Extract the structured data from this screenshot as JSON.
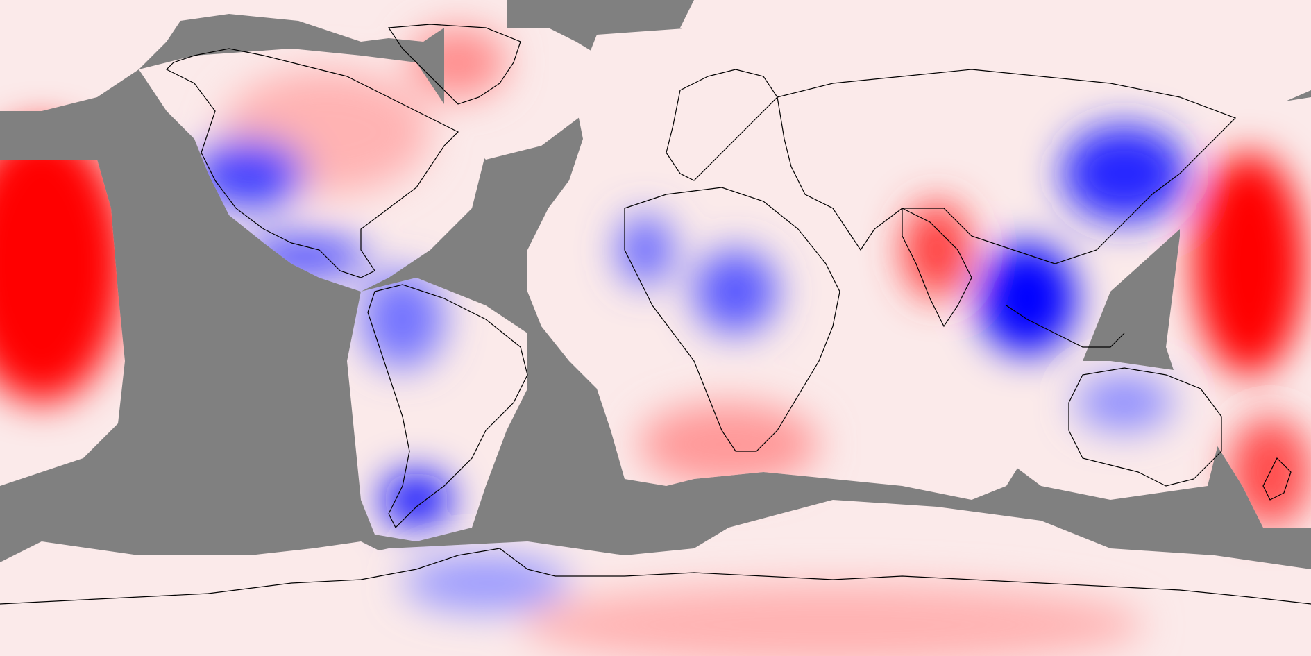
{
  "map": {
    "projection": "equirectangular",
    "lon_range": [
      -180,
      180
    ],
    "lat_range": [
      -90,
      90
    ],
    "colormap": {
      "negative": "#0000ff",
      "zero": "#ffffff",
      "positive": "#ff0000",
      "missing": "#808080",
      "coastline": "#000000"
    },
    "regions": [
      {
        "name": "central-pacific-positive",
        "value": 1.0
      },
      {
        "name": "greenland-positive",
        "value": 0.45
      },
      {
        "name": "north-america-positive",
        "value": 0.3
      },
      {
        "name": "western-usa-negative",
        "value": -0.75
      },
      {
        "name": "central-america-negative",
        "value": -0.7
      },
      {
        "name": "amazon-negative",
        "value": -0.55
      },
      {
        "name": "patagonia-negative",
        "value": -0.95
      },
      {
        "name": "west-africa-negative",
        "value": -0.6
      },
      {
        "name": "central-africa-negative",
        "value": -0.65
      },
      {
        "name": "southern-africa-positive",
        "value": 0.4
      },
      {
        "name": "india-positive",
        "value": 0.75
      },
      {
        "name": "southeast-asia-negative",
        "value": -1.0
      },
      {
        "name": "east-china-negative",
        "value": -0.85
      },
      {
        "name": "west-pacific-positive",
        "value": 1.0
      },
      {
        "name": "australia-negative",
        "value": -0.45
      },
      {
        "name": "new-zealand-positive",
        "value": 0.7
      },
      {
        "name": "antarctica-positive",
        "value": 0.3
      },
      {
        "name": "east-antarctica-negative",
        "value": -0.4
      }
    ]
  }
}
